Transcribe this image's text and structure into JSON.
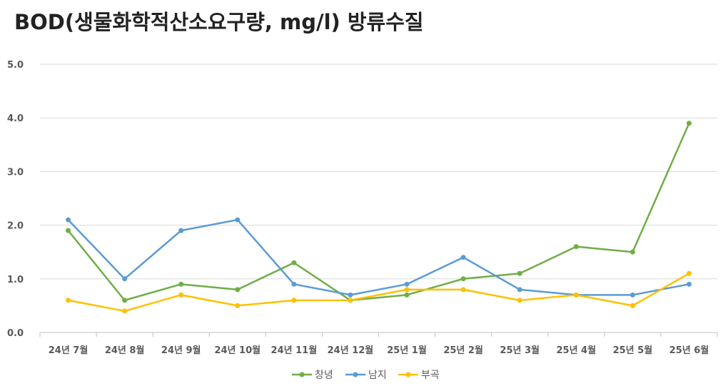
{
  "chart_data": {
    "type": "line",
    "title": "BOD(생물화학적산소요구량, mg/l) 방류수질",
    "xlabel": "",
    "ylabel": "",
    "ylim": [
      0,
      5
    ],
    "yticks": [
      "0.0",
      "1.0",
      "2.0",
      "3.0",
      "4.0",
      "5.0"
    ],
    "grid": true,
    "legend": "bottom",
    "categories": [
      "24년 7월",
      "24년 8월",
      "24년 9월",
      "24년 10월",
      "24년 11월",
      "24년 12월",
      "25년 1월",
      "25년 2월",
      "25년 3월",
      "25년 4월",
      "25년 5월",
      "25년 6월"
    ],
    "series": [
      {
        "name": "창녕",
        "color": "#70AD47",
        "values": [
          1.9,
          0.6,
          0.9,
          0.8,
          1.3,
          0.6,
          0.7,
          1.0,
          1.1,
          1.6,
          1.5,
          3.9
        ]
      },
      {
        "name": "남지",
        "color": "#5B9BD5",
        "values": [
          2.1,
          1.0,
          1.9,
          2.1,
          0.9,
          0.7,
          0.9,
          1.4,
          0.8,
          0.7,
          0.7,
          0.9
        ]
      },
      {
        "name": "부곡",
        "color": "#FFC000",
        "values": [
          0.6,
          0.4,
          0.7,
          0.5,
          0.6,
          0.6,
          0.8,
          0.8,
          0.6,
          0.7,
          0.5,
          1.1
        ]
      }
    ]
  }
}
